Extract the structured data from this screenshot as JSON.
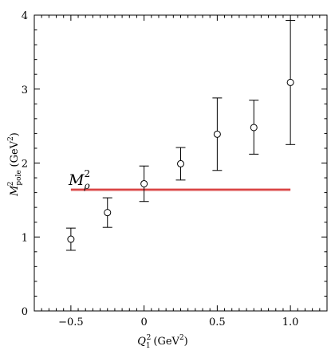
{
  "chart_data": {
    "type": "scatter",
    "xlabel": {
      "base": "Q",
      "sub": "1",
      "sup": "2",
      "unit": "(GeV",
      "unit_sup": "2",
      "unit_close": ")"
    },
    "ylabel": {
      "base": "M",
      "sub": "pole",
      "sup": "2",
      "unit": "(GeV",
      "unit_sup": "2",
      "unit_close": ")"
    },
    "xlim": [
      -0.75,
      1.25
    ],
    "ylim": [
      0,
      4
    ],
    "x_ticks": [
      -0.5,
      0,
      0.5,
      1.0
    ],
    "x_tick_labels": [
      "−0.5",
      "0",
      "0.5",
      "1.0"
    ],
    "y_ticks": [
      0,
      1,
      2,
      3,
      4
    ],
    "y_tick_labels": [
      "0",
      "1",
      "2",
      "3",
      "4"
    ],
    "points": [
      {
        "x": -0.5,
        "y": 0.97,
        "y_low": 0.82,
        "y_high": 1.12
      },
      {
        "x": -0.25,
        "y": 1.33,
        "y_low": 1.13,
        "y_high": 1.53
      },
      {
        "x": 0.0,
        "y": 1.72,
        "y_low": 1.48,
        "y_high": 1.96
      },
      {
        "x": 0.25,
        "y": 1.99,
        "y_low": 1.77,
        "y_high": 2.21
      },
      {
        "x": 0.5,
        "y": 2.39,
        "y_low": 1.9,
        "y_high": 2.88
      },
      {
        "x": 0.75,
        "y": 2.48,
        "y_low": 2.12,
        "y_high": 2.85
      },
      {
        "x": 1.0,
        "y": 3.09,
        "y_low": 2.25,
        "y_high": 3.93
      }
    ],
    "band": {
      "label_base": "M",
      "label_sub": "ρ",
      "label_sup": "2",
      "x_from": -0.5,
      "x_to": 1.0,
      "y": 1.64,
      "y_low": 1.62,
      "y_high": 1.66,
      "color": "#d94040"
    },
    "grid": false
  }
}
